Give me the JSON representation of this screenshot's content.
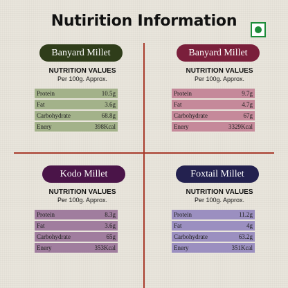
{
  "title": "Nutirition Information",
  "nutrition_values_label": "NUTRITION VALUES",
  "per_label": "Per 100g. Approx.",
  "panels": [
    {
      "name": "Banyard Millet",
      "pill_color": "#2f3d1a",
      "table_color": "#a3b28a",
      "rows": [
        {
          "label": "Protein",
          "value": "10.5g"
        },
        {
          "label": "Fat",
          "value": "3.6g"
        },
        {
          "label": "Carbohydrate",
          "value": "68.8g"
        },
        {
          "label": "Enery",
          "value": "398Kcal"
        }
      ]
    },
    {
      "name": "Banyard Millet",
      "pill_color": "#7a1f3b",
      "table_color": "#c5899a",
      "rows": [
        {
          "label": "Protein",
          "value": "9.7g"
        },
        {
          "label": "Fat",
          "value": "4.7g"
        },
        {
          "label": "Carbohydrate",
          "value": "67g"
        },
        {
          "label": "Enery",
          "value": "3329Kcal"
        }
      ]
    },
    {
      "name": "Kodo Millet",
      "pill_color": "#4a1448",
      "table_color": "#a07d9e",
      "rows": [
        {
          "label": "Protein",
          "value": "8.3g"
        },
        {
          "label": "Fat",
          "value": "3.6g"
        },
        {
          "label": "Carbohydrate",
          "value": "65g"
        },
        {
          "label": "Enery",
          "value": "353Kcal"
        }
      ]
    },
    {
      "name": "Foxtail Millet",
      "pill_color": "#23214f",
      "table_color": "#9b8fc0",
      "rows": [
        {
          "label": "Protein",
          "value": "11.2g"
        },
        {
          "label": "Fat",
          "value": "4g"
        },
        {
          "label": "Carbohydrate",
          "value": "63.2g"
        },
        {
          "label": "Enery",
          "value": "351Kcal"
        }
      ]
    }
  ]
}
